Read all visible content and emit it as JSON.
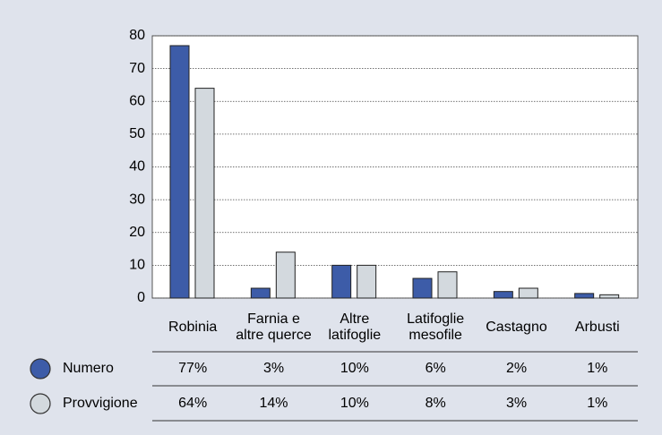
{
  "chart_data": {
    "type": "bar",
    "categories": [
      [
        "Robinia"
      ],
      [
        "Farnia e",
        "altre querce"
      ],
      [
        "Altre",
        "latifoglie"
      ],
      [
        "Latifoglie",
        "mesofile"
      ],
      [
        "Castagno"
      ],
      [
        "Arbusti"
      ]
    ],
    "series": [
      {
        "name": "Numero",
        "color": "#3d5ca8",
        "values": [
          77,
          3,
          10,
          6,
          2,
          1.4
        ],
        "value_labels": [
          "77%",
          "3%",
          "10%",
          "6%",
          "2%",
          "1%"
        ]
      },
      {
        "name": "Provvigione",
        "color": "#d3d9de",
        "values": [
          64,
          14,
          10,
          8,
          3,
          1
        ],
        "value_labels": [
          "64%",
          "14%",
          "10%",
          "8%",
          "3%",
          "1%"
        ]
      }
    ],
    "ylim": [
      0,
      80
    ],
    "yticks": [
      0,
      10,
      20,
      30,
      40,
      50,
      60,
      70,
      80
    ],
    "grid": true
  }
}
